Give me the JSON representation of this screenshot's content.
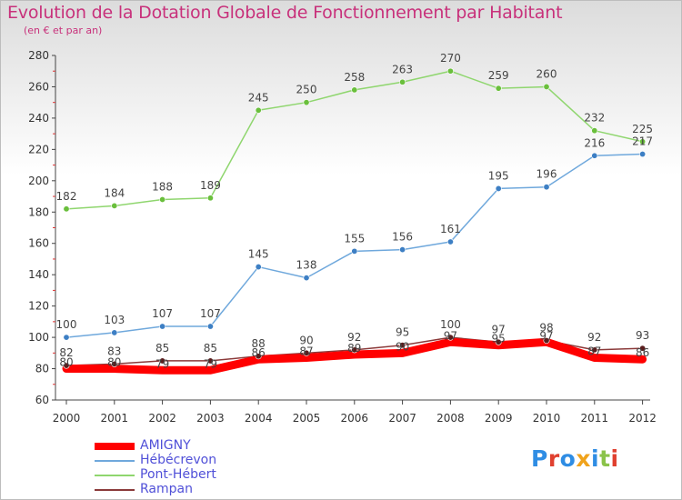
{
  "title": "Evolution de la Dotation Globale de Fonctionnement par Habitant",
  "subtitle": "(en € et par an)",
  "logo": {
    "text": "Proxiti",
    "letter_colors": [
      "#2f8de4",
      "#e0402f",
      "#2f8de4",
      "#f0a31c",
      "#2f8de4",
      "#8bc34a",
      "#e0402f"
    ]
  },
  "chart_data": {
    "type": "line",
    "x": [
      "2000",
      "2001",
      "2002",
      "2003",
      "2004",
      "2005",
      "2006",
      "2007",
      "2008",
      "2009",
      "2010",
      "2011",
      "2012"
    ],
    "ylim": [
      60,
      280
    ],
    "yticks": [
      60,
      80,
      100,
      120,
      140,
      160,
      180,
      200,
      220,
      240,
      260,
      280
    ],
    "grid": false,
    "legend_position": "bottom-left",
    "series": [
      {
        "name": "Pont-Hébert",
        "color": "#8fd66e",
        "point_color": "#6abf3c",
        "values": [
          182,
          184,
          188,
          189,
          245,
          250,
          258,
          263,
          270,
          259,
          260,
          232,
          225
        ],
        "labels": [
          "182",
          "184",
          "188",
          "189",
          "245",
          "250",
          "258",
          "263",
          "270",
          "259",
          "260",
          "232",
          "225"
        ]
      },
      {
        "name": "Hébécrevon",
        "color": "#6fa8dc",
        "point_color": "#3d7fc4",
        "values": [
          100,
          103,
          107,
          107,
          145,
          138,
          155,
          156,
          161,
          195,
          196,
          216,
          217
        ],
        "labels": [
          "100",
          "103",
          "107",
          "107",
          "145",
          "138",
          "155",
          "156",
          "161",
          "195",
          "196",
          "216",
          "217"
        ]
      },
      {
        "name": "Rampan",
        "color": "#8b3a3a",
        "point_color": "#5a1e1e",
        "values": [
          82,
          83,
          85,
          85,
          88,
          90,
          92,
          95,
          100,
          97,
          98,
          92,
          93
        ],
        "labels": [
          "82",
          "83",
          "85",
          "85",
          "88",
          "90",
          "92",
          "95",
          "100",
          "97",
          "98",
          "92",
          "93"
        ]
      },
      {
        "name": "AMIGNY",
        "color": "#ff0000",
        "point_color": "#ff0000",
        "values": [
          80,
          80,
          79,
          79,
          86,
          87,
          89,
          90,
          97,
          95,
          97,
          87,
          86
        ],
        "labels": [
          "80",
          "80",
          "79",
          "79",
          "86",
          "87",
          "89",
          "90",
          "97",
          "95",
          "97",
          "87",
          "86"
        ]
      }
    ],
    "legend": [
      "AMIGNY",
      "Hébécrevon",
      "Pont-Hébert",
      "Rampan"
    ]
  }
}
